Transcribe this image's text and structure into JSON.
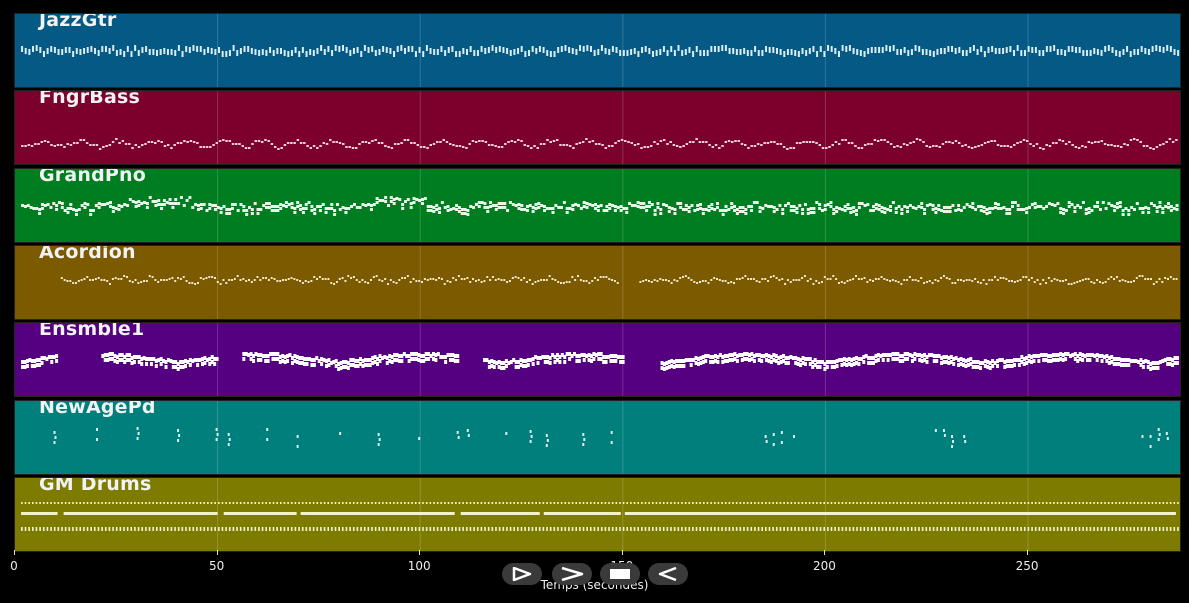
{
  "tracks": [
    {
      "name": "JazzGtr",
      "color": "#045a84",
      "noteColor": "#d8ecf2",
      "pattern": "guitar"
    },
    {
      "name": "FngrBass",
      "color": "#7c002c",
      "noteColor": "#f0cfd8",
      "pattern": "bass"
    },
    {
      "name": "GrandPno",
      "color": "#007d21",
      "noteColor": "#eaf7ea",
      "pattern": "piano"
    },
    {
      "name": "Acordion",
      "color": "#7c5a00",
      "noteColor": "#f2e6cc",
      "pattern": "accordion"
    },
    {
      "name": "Ensmble1",
      "color": "#540080",
      "noteColor": "#ffffff",
      "pattern": "ensemble"
    },
    {
      "name": "NewAgePd",
      "color": "#007f7c",
      "noteColor": "#d6f1f0",
      "pattern": "pad"
    },
    {
      "name": "GM Drums",
      "color": "#7d7c00",
      "noteColor": "#f2f2cc",
      "pattern": "drums"
    }
  ],
  "x_axis": {
    "label": "Temps (secondes)",
    "ticks": [
      0,
      50,
      100,
      150,
      200,
      250
    ],
    "max": 288
  },
  "controls": {
    "play_icon": "play-outline-icon",
    "forward_icon": "forward-chevron-icon",
    "stop_icon": "stop-icon",
    "rewind_icon": "rewind-outline-icon"
  }
}
